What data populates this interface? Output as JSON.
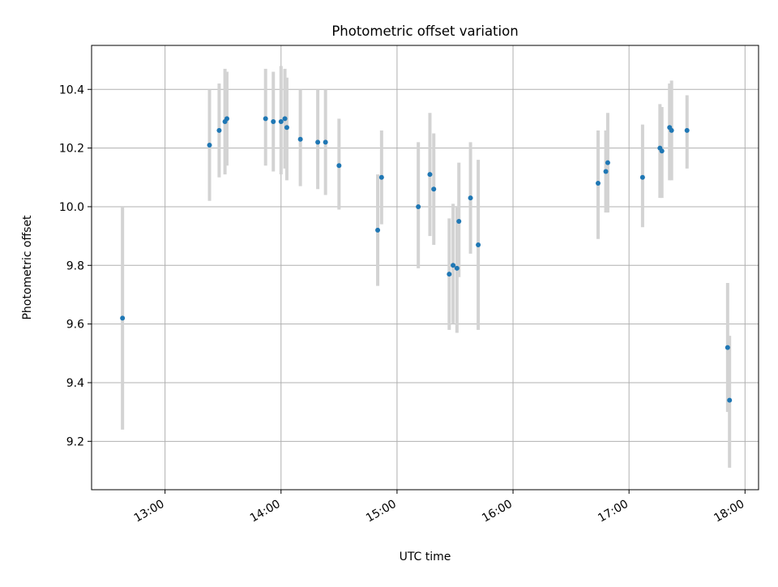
{
  "chart_data": {
    "type": "scatter",
    "title": "Photometric offset variation",
    "xlabel": "UTC time",
    "ylabel": "Photometric offset",
    "x_unit": "UTC hours",
    "xlim": [
      "12:22",
      "18:07"
    ],
    "ylim": [
      9.035,
      10.55
    ],
    "x_ticks": [
      "13:00",
      "14:00",
      "15:00",
      "16:00",
      "17:00",
      "18:00"
    ],
    "y_ticks": [
      "9.2",
      "9.4",
      "9.6",
      "9.8",
      "10.0",
      "10.2",
      "10.4"
    ],
    "grid": true,
    "legend": "none",
    "marker_color": "#1f77b4",
    "errorbar_color": "#d3d3d3",
    "points": [
      {
        "time": "12:38",
        "y": 9.62,
        "ylow": 9.24,
        "yhigh": 10.0
      },
      {
        "time": "13:23",
        "y": 10.21,
        "ylow": 10.02,
        "yhigh": 10.4
      },
      {
        "time": "13:28",
        "y": 10.26,
        "ylow": 10.1,
        "yhigh": 10.42
      },
      {
        "time": "13:31",
        "y": 10.29,
        "ylow": 10.11,
        "yhigh": 10.47
      },
      {
        "time": "13:32",
        "y": 10.3,
        "ylow": 10.14,
        "yhigh": 10.46
      },
      {
        "time": "13:52",
        "y": 10.3,
        "ylow": 10.14,
        "yhigh": 10.47
      },
      {
        "time": "13:56",
        "y": 10.29,
        "ylow": 10.12,
        "yhigh": 10.46
      },
      {
        "time": "14:00",
        "y": 10.29,
        "ylow": 10.11,
        "yhigh": 10.48
      },
      {
        "time": "14:02",
        "y": 10.3,
        "ylow": 10.13,
        "yhigh": 10.47
      },
      {
        "time": "14:03",
        "y": 10.27,
        "ylow": 10.09,
        "yhigh": 10.44
      },
      {
        "time": "14:10",
        "y": 10.23,
        "ylow": 10.07,
        "yhigh": 10.4
      },
      {
        "time": "14:19",
        "y": 10.22,
        "ylow": 10.06,
        "yhigh": 10.4
      },
      {
        "time": "14:23",
        "y": 10.22,
        "ylow": 10.04,
        "yhigh": 10.4
      },
      {
        "time": "14:30",
        "y": 10.14,
        "ylow": 9.99,
        "yhigh": 10.3
      },
      {
        "time": "14:50",
        "y": 9.92,
        "ylow": 9.73,
        "yhigh": 10.11
      },
      {
        "time": "14:52",
        "y": 10.1,
        "ylow": 9.94,
        "yhigh": 10.26
      },
      {
        "time": "15:11",
        "y": 10.0,
        "ylow": 9.79,
        "yhigh": 10.22
      },
      {
        "time": "15:17",
        "y": 10.11,
        "ylow": 9.9,
        "yhigh": 10.32
      },
      {
        "time": "15:19",
        "y": 10.06,
        "ylow": 9.87,
        "yhigh": 10.25
      },
      {
        "time": "15:27",
        "y": 9.77,
        "ylow": 9.58,
        "yhigh": 9.96
      },
      {
        "time": "15:29",
        "y": 9.8,
        "ylow": 9.6,
        "yhigh": 10.01
      },
      {
        "time": "15:31",
        "y": 9.79,
        "ylow": 9.57,
        "yhigh": 10.0
      },
      {
        "time": "15:32",
        "y": 9.95,
        "ylow": 9.76,
        "yhigh": 10.15
      },
      {
        "time": "15:38",
        "y": 10.03,
        "ylow": 9.84,
        "yhigh": 10.22
      },
      {
        "time": "15:42",
        "y": 9.87,
        "ylow": 9.58,
        "yhigh": 10.16
      },
      {
        "time": "16:44",
        "y": 10.08,
        "ylow": 9.89,
        "yhigh": 10.26
      },
      {
        "time": "16:48",
        "y": 10.12,
        "ylow": 9.98,
        "yhigh": 10.26
      },
      {
        "time": "16:49",
        "y": 10.15,
        "ylow": 9.98,
        "yhigh": 10.32
      },
      {
        "time": "17:07",
        "y": 10.1,
        "ylow": 9.93,
        "yhigh": 10.28
      },
      {
        "time": "17:16",
        "y": 10.2,
        "ylow": 10.03,
        "yhigh": 10.35
      },
      {
        "time": "17:17",
        "y": 10.19,
        "ylow": 10.03,
        "yhigh": 10.34
      },
      {
        "time": "17:21",
        "y": 10.27,
        "ylow": 10.09,
        "yhigh": 10.42
      },
      {
        "time": "17:22",
        "y": 10.26,
        "ylow": 10.09,
        "yhigh": 10.43
      },
      {
        "time": "17:30",
        "y": 10.26,
        "ylow": 10.13,
        "yhigh": 10.38
      },
      {
        "time": "17:51",
        "y": 9.52,
        "ylow": 9.3,
        "yhigh": 9.74
      },
      {
        "time": "17:52",
        "y": 9.34,
        "ylow": 9.11,
        "yhigh": 9.56
      }
    ]
  }
}
